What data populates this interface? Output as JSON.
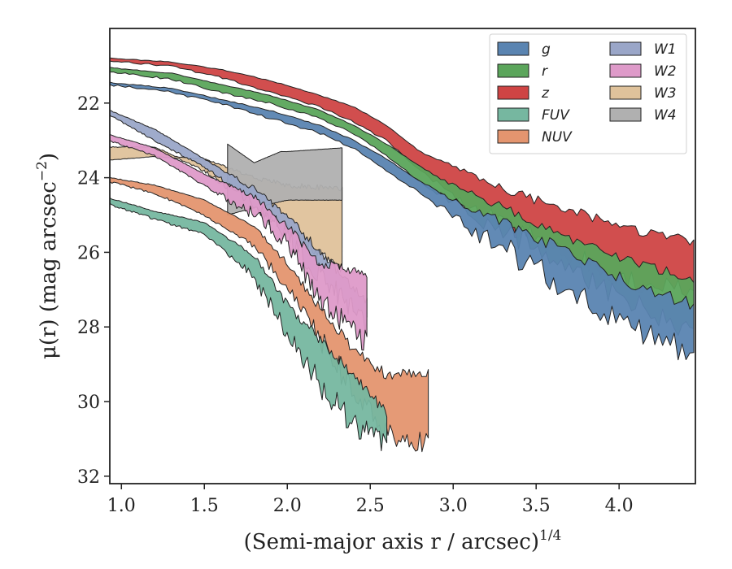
{
  "chart_data": {
    "type": "area",
    "xlabel": "(Semi-major axis r / arcsec)",
    "xlabel_superscript": "1/4",
    "ylabel": "μ(r) (mag arcsec",
    "ylabel_superscript": "−2",
    "ylabel_suffix": ")",
    "xlim": [
      0.93,
      4.46
    ],
    "ylim": [
      32.2,
      20.0
    ],
    "y_inverted": true,
    "xticks": [
      "1.0",
      "1.5",
      "2.0",
      "2.5",
      "3.0",
      "3.5",
      "4.0"
    ],
    "yticks": [
      "22",
      "24",
      "26",
      "28",
      "30",
      "32"
    ],
    "legend_position": "top-right",
    "legend_columns": 2,
    "series": [
      {
        "name": "W3",
        "color": "#dfc29b",
        "xmin": 0.93,
        "xmax": 2.33,
        "noise": 0.25,
        "noise_start": 1.4,
        "lower": [
          [
            0.93,
            23.5
          ],
          [
            1.2,
            23.4
          ],
          [
            1.5,
            23.5
          ],
          [
            1.8,
            24.0
          ],
          [
            2.0,
            24.2
          ],
          [
            2.33,
            24.3
          ]
        ],
        "upper": [
          [
            0.93,
            23.2
          ],
          [
            1.2,
            23.2
          ],
          [
            1.5,
            23.8
          ],
          [
            1.8,
            24.7
          ],
          [
            2.0,
            25.3
          ],
          [
            2.33,
            26.4
          ]
        ]
      },
      {
        "name": "W4",
        "color": "#b0b0b0",
        "xmin": 1.64,
        "xmax": 2.33,
        "noise": 0.1,
        "noise_start": 2.4,
        "lower": [
          [
            1.64,
            23.1
          ],
          [
            1.8,
            23.6
          ],
          [
            1.96,
            23.3
          ],
          [
            2.0,
            23.3
          ],
          [
            2.33,
            23.2
          ]
        ],
        "upper": [
          [
            1.64,
            25.0
          ],
          [
            1.8,
            24.8
          ],
          [
            2.0,
            24.6
          ],
          [
            2.33,
            24.6
          ]
        ]
      },
      {
        "name": "W1",
        "color": "#9aa6c8",
        "xmin": 0.93,
        "xmax": 2.48,
        "noise": 0.45,
        "noise_start": 1.5,
        "lower": [
          [
            0.93,
            22.2
          ],
          [
            1.2,
            22.7
          ],
          [
            1.5,
            23.5
          ],
          [
            1.8,
            24.3
          ],
          [
            2.0,
            25.0
          ],
          [
            2.2,
            26.0
          ],
          [
            2.48,
            27.3
          ]
        ],
        "upper": [
          [
            0.93,
            22.3
          ],
          [
            1.2,
            23.0
          ],
          [
            1.5,
            23.7
          ],
          [
            1.8,
            24.6
          ],
          [
            2.0,
            25.4
          ],
          [
            2.2,
            26.5
          ],
          [
            2.48,
            27.8
          ]
        ]
      },
      {
        "name": "W2",
        "color": "#de9ac9",
        "xmin": 0.93,
        "xmax": 2.48,
        "noise": 0.45,
        "noise_start": 1.5,
        "lower": [
          [
            0.93,
            22.85
          ],
          [
            1.2,
            23.2
          ],
          [
            1.5,
            23.9
          ],
          [
            1.8,
            24.5
          ],
          [
            2.0,
            25.3
          ],
          [
            2.2,
            26.3
          ],
          [
            2.48,
            26.6
          ]
        ],
        "upper": [
          [
            0.93,
            23.0
          ],
          [
            1.2,
            23.4
          ],
          [
            1.5,
            24.2
          ],
          [
            1.8,
            24.9
          ],
          [
            2.0,
            25.6
          ],
          [
            2.2,
            27.2
          ],
          [
            2.48,
            28.3
          ]
        ]
      },
      {
        "name": "NUV",
        "color": "#e4956f",
        "xmin": 0.93,
        "xmax": 2.85,
        "noise": 0.5,
        "noise_start": 1.7,
        "lower": [
          [
            0.93,
            24.0
          ],
          [
            1.2,
            24.2
          ],
          [
            1.5,
            24.6
          ],
          [
            1.8,
            25.3
          ],
          [
            2.0,
            26.3
          ],
          [
            2.2,
            27.5
          ],
          [
            2.4,
            28.6
          ],
          [
            2.6,
            29.3
          ],
          [
            2.85,
            29.2
          ]
        ],
        "upper": [
          [
            0.93,
            24.1
          ],
          [
            1.2,
            24.4
          ],
          [
            1.5,
            25.0
          ],
          [
            1.8,
            25.8
          ],
          [
            2.0,
            26.9
          ],
          [
            2.2,
            28.2
          ],
          [
            2.4,
            29.6
          ],
          [
            2.6,
            30.7
          ],
          [
            2.85,
            31.0
          ]
        ]
      },
      {
        "name": "FUV",
        "color": "#76b7a0",
        "xmin": 0.93,
        "xmax": 2.6,
        "noise": 0.55,
        "noise_start": 1.6,
        "lower": [
          [
            0.93,
            24.55
          ],
          [
            1.2,
            24.9
          ],
          [
            1.5,
            25.2
          ],
          [
            1.8,
            26.1
          ],
          [
            2.0,
            27.4
          ],
          [
            2.2,
            28.4
          ],
          [
            2.4,
            29.3
          ],
          [
            2.6,
            30.3
          ]
        ],
        "upper": [
          [
            0.93,
            24.7
          ],
          [
            1.2,
            25.1
          ],
          [
            1.5,
            25.5
          ],
          [
            1.8,
            26.6
          ],
          [
            2.0,
            28.1
          ],
          [
            2.2,
            29.4
          ],
          [
            2.4,
            30.5
          ],
          [
            2.6,
            31.1
          ]
        ]
      },
      {
        "name": "z",
        "color": "#cf4444",
        "xmin": 0.93,
        "xmax": 4.45,
        "noise": 0.45,
        "noise_start": 2.8,
        "lower": [
          [
            0.93,
            20.8
          ],
          [
            1.3,
            20.9
          ],
          [
            1.6,
            21.1
          ],
          [
            1.9,
            21.4
          ],
          [
            2.2,
            21.8
          ],
          [
            2.4,
            22.1
          ],
          [
            2.6,
            22.6
          ],
          [
            2.8,
            23.3
          ],
          [
            3.0,
            23.7
          ],
          [
            3.2,
            24.1
          ],
          [
            3.5,
            24.6
          ],
          [
            3.8,
            25.0
          ],
          [
            4.1,
            25.4
          ],
          [
            4.45,
            25.7
          ]
        ],
        "upper": [
          [
            0.93,
            20.85
          ],
          [
            1.3,
            21.0
          ],
          [
            1.6,
            21.3
          ],
          [
            1.9,
            21.7
          ],
          [
            2.2,
            22.1
          ],
          [
            2.4,
            22.5
          ],
          [
            2.6,
            23.0
          ],
          [
            2.8,
            23.8
          ],
          [
            3.0,
            24.4
          ],
          [
            3.2,
            24.9
          ],
          [
            3.5,
            25.5
          ],
          [
            3.8,
            26.1
          ],
          [
            4.1,
            26.7
          ],
          [
            4.45,
            27.0
          ]
        ]
      },
      {
        "name": "r",
        "color": "#5ba55b",
        "xmin": 0.93,
        "xmax": 4.45,
        "noise": 0.45,
        "noise_start": 2.8,
        "lower": [
          [
            0.93,
            21.05
          ],
          [
            1.3,
            21.2
          ],
          [
            1.6,
            21.5
          ],
          [
            1.9,
            21.8
          ],
          [
            2.2,
            22.2
          ],
          [
            2.4,
            22.6
          ],
          [
            2.6,
            23.1
          ],
          [
            2.8,
            23.7
          ],
          [
            3.0,
            24.2
          ],
          [
            3.2,
            24.6
          ],
          [
            3.5,
            25.2
          ],
          [
            3.8,
            25.8
          ],
          [
            4.1,
            26.3
          ],
          [
            4.45,
            26.7
          ]
        ],
        "upper": [
          [
            0.93,
            21.15
          ],
          [
            1.3,
            21.35
          ],
          [
            1.6,
            21.7
          ],
          [
            1.9,
            22.0
          ],
          [
            2.2,
            22.4
          ],
          [
            2.4,
            22.8
          ],
          [
            2.6,
            23.4
          ],
          [
            2.8,
            24.1
          ],
          [
            3.0,
            24.6
          ],
          [
            3.2,
            25.1
          ],
          [
            3.5,
            25.8
          ],
          [
            3.8,
            26.6
          ],
          [
            4.1,
            27.3
          ],
          [
            4.45,
            28.0
          ]
        ]
      },
      {
        "name": "g",
        "color": "#5a84b1",
        "xmin": 0.93,
        "xmax": 4.45,
        "noise": 0.55,
        "noise_start": 2.8,
        "lower": [
          [
            0.93,
            21.45
          ],
          [
            1.3,
            21.6
          ],
          [
            1.6,
            21.9
          ],
          [
            1.9,
            22.2
          ],
          [
            2.2,
            22.6
          ],
          [
            2.4,
            23.0
          ],
          [
            2.6,
            23.5
          ],
          [
            2.8,
            24.1
          ],
          [
            3.0,
            24.6
          ],
          [
            3.2,
            25.0
          ],
          [
            3.5,
            25.6
          ],
          [
            3.8,
            26.2
          ],
          [
            4.1,
            26.9
          ],
          [
            4.45,
            27.4
          ]
        ],
        "upper": [
          [
            0.93,
            21.5
          ],
          [
            1.3,
            21.7
          ],
          [
            1.6,
            22.0
          ],
          [
            1.9,
            22.4
          ],
          [
            2.2,
            22.8
          ],
          [
            2.4,
            23.2
          ],
          [
            2.6,
            23.8
          ],
          [
            2.8,
            24.4
          ],
          [
            3.0,
            25.0
          ],
          [
            3.2,
            25.5
          ],
          [
            3.5,
            26.3
          ],
          [
            3.8,
            27.1
          ],
          [
            4.1,
            27.9
          ],
          [
            4.45,
            28.6
          ]
        ]
      }
    ],
    "legend": [
      "g",
      "r",
      "z",
      "FUV",
      "NUV",
      "W1",
      "W2",
      "W3",
      "W4"
    ]
  }
}
